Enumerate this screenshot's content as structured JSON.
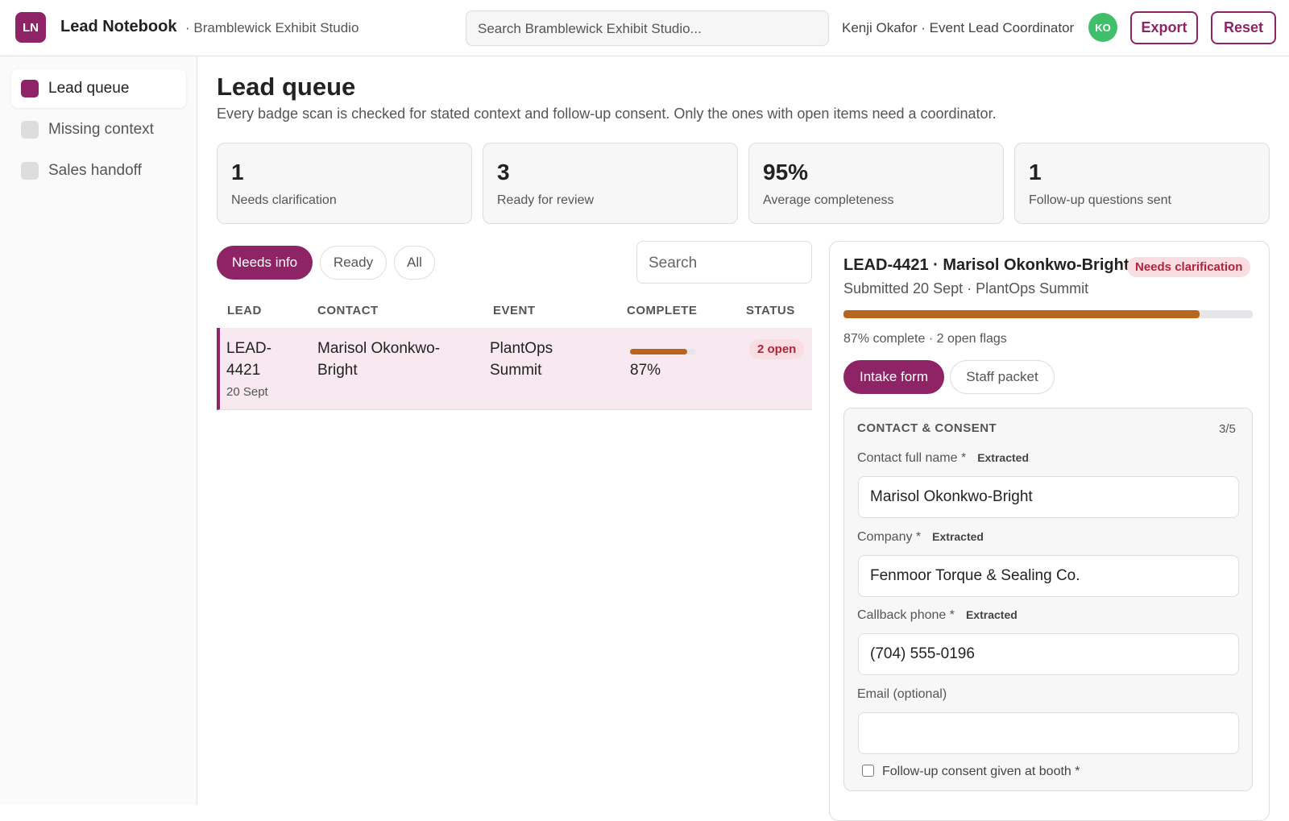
{
  "header": {
    "logo": "LN",
    "app_name": "Lead Notebook",
    "workspace": "· Bramblewick Exhibit Studio",
    "search_placeholder": "Search Bramblewick Exhibit Studio...",
    "user": "Kenji Okafor · Event Lead Coordinator",
    "avatar": "KO",
    "actions": [
      "Export",
      "Reset"
    ]
  },
  "sidebar": {
    "items": [
      "Lead queue",
      "Missing context",
      "Sales handoff"
    ]
  },
  "page": {
    "title": "Lead queue",
    "subtitle": "Every badge scan is checked for stated context and follow-up consent. Only the ones with open items need a coordinator."
  },
  "stats": [
    {
      "value": "1",
      "label": "Needs clarification"
    },
    {
      "value": "3",
      "label": "Ready for review"
    },
    {
      "value": "95%",
      "label": "Average completeness"
    },
    {
      "value": "1",
      "label": "Follow-up questions sent"
    }
  ],
  "filters": [
    "Needs info",
    "Ready",
    "All"
  ],
  "table_search": "Search",
  "table": {
    "columns": [
      "LEAD",
      "CONTACT",
      "EVENT",
      "COMPLETE",
      "STATUS"
    ],
    "rows": [
      {
        "lead_id": "LEAD-4421",
        "date": "20 Sept",
        "contact": "Marisol Okonkwo-Bright",
        "event": "PlantOps Summit",
        "complete": 87,
        "complete_label": "87%",
        "status": "2 open"
      }
    ]
  },
  "detail": {
    "title": "LEAD-4421 · Marisol Okonkwo-Bright",
    "badge": "Needs clarification",
    "meta": "Submitted 20 Sept · PlantOps Summit",
    "progress": 87,
    "progress_label": "87% complete · 2 open flags",
    "tabs": [
      "Intake form",
      "Staff packet"
    ],
    "section": {
      "title": "CONTACT & CONSENT",
      "count": "3/5",
      "fields": [
        {
          "label": "Contact full name *",
          "tag": "Extracted",
          "value": "Marisol Okonkwo-Bright"
        },
        {
          "label": "Company *",
          "tag": "Extracted",
          "value": "Fenmoor Torque & Sealing Co."
        },
        {
          "label": "Callback phone *",
          "tag": "Extracted",
          "value": "(704) 555-0196"
        },
        {
          "label": "Email (optional)"
        }
      ],
      "consent": "Follow-up consent given at booth *"
    }
  }
}
